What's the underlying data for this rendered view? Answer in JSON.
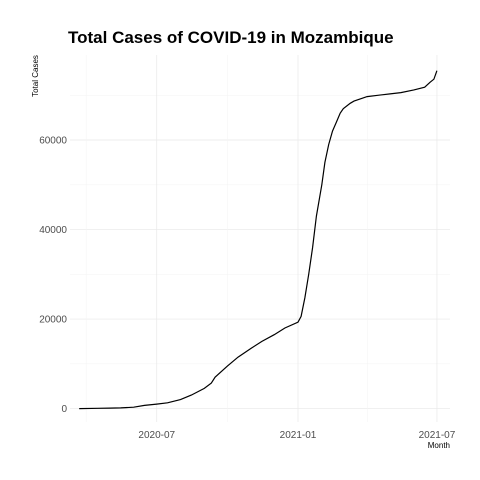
{
  "chart_data": {
    "type": "line",
    "title": "Total Cases of COVID-19 in Mozambique",
    "xlabel": "Month",
    "ylabel": "Total Cases",
    "x_ticks": [
      "2020-07",
      "2021-01",
      "2021-07"
    ],
    "y_ticks": [
      "0",
      "20000",
      "40000",
      "60000"
    ],
    "y_tick_values": [
      0,
      20000,
      40000,
      60000
    ],
    "xlim": [
      "2020-03-10",
      "2021-07-18"
    ],
    "ylim": [
      -3000,
      79000
    ],
    "grid": true,
    "legend": "none",
    "series": [
      {
        "x": [
          "2020-03-22",
          "2020-04-15",
          "2020-05-01",
          "2020-05-15",
          "2020-06-01",
          "2020-06-15",
          "2020-07-01",
          "2020-07-15",
          "2020-08-01",
          "2020-08-15",
          "2020-09-01",
          "2020-09-10",
          "2020-09-15",
          "2020-10-01",
          "2020-10-15",
          "2020-11-01",
          "2020-11-15",
          "2020-12-01",
          "2020-12-15",
          "2021-01-01",
          "2021-01-05",
          "2021-01-10",
          "2021-01-15",
          "2021-01-20",
          "2021-01-25",
          "2021-02-01",
          "2021-02-05",
          "2021-02-10",
          "2021-02-15",
          "2021-02-20",
          "2021-02-25",
          "2021-03-01",
          "2021-03-10",
          "2021-03-15",
          "2021-03-25",
          "2021-04-01",
          "2021-04-15",
          "2021-05-01",
          "2021-05-15",
          "2021-06-01",
          "2021-06-15",
          "2021-06-22",
          "2021-06-27",
          "2021-07-01"
        ],
        "y": [
          0,
          50,
          100,
          150,
          300,
          700,
          1000,
          1300,
          2000,
          3000,
          4500,
          5700,
          7000,
          9500,
          11500,
          13500,
          15000,
          16500,
          18000,
          19300,
          20600,
          24800,
          30000,
          36000,
          43000,
          50000,
          55000,
          59000,
          62000,
          64000,
          66000,
          67000,
          68200,
          68700,
          69300,
          69700,
          70000,
          70300,
          70600,
          71200,
          71800,
          72900,
          73600,
          75500
        ]
      }
    ]
  }
}
